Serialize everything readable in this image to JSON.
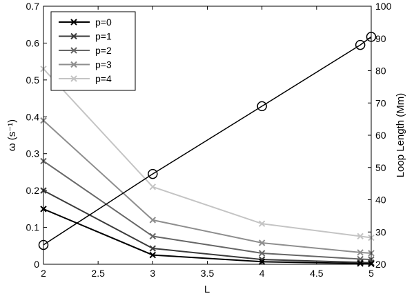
{
  "chart_data": {
    "type": "line",
    "xlabel": "L",
    "ylabel": "ω (s⁻¹)",
    "y2label": "Loop Length (Mm)",
    "xlim": [
      2,
      5
    ],
    "ylim": [
      0,
      0.7
    ],
    "y2lim": [
      20,
      100
    ],
    "xticks": [
      "2",
      "2.5",
      "3",
      "3.5",
      "4",
      "4.5",
      "5"
    ],
    "yticks": [
      "0",
      "0.1",
      "0.2",
      "0.3",
      "0.4",
      "0.5",
      "0.6",
      "0.7"
    ],
    "y2ticks": [
      "20",
      "30",
      "40",
      "50",
      "60",
      "70",
      "80",
      "90",
      "100"
    ],
    "legend_position": "top-left",
    "series": [
      {
        "name": "p=0",
        "axis": "left",
        "marker": "x",
        "color": "#000000",
        "x": [
          2,
          3,
          4,
          4.9,
          5
        ],
        "y": [
          0.15,
          0.025,
          0.007,
          0.002,
          0.001
        ]
      },
      {
        "name": "p=1",
        "axis": "left",
        "marker": "x",
        "color": "#3a3a3a",
        "x": [
          2,
          3,
          4,
          4.9,
          5
        ],
        "y": [
          0.2,
          0.043,
          0.013,
          0.005,
          0.004
        ]
      },
      {
        "name": "p=2",
        "axis": "left",
        "marker": "x",
        "color": "#666666",
        "x": [
          2,
          3,
          4,
          4.9,
          5
        ],
        "y": [
          0.28,
          0.076,
          0.03,
          0.014,
          0.013
        ]
      },
      {
        "name": "p=3",
        "axis": "left",
        "marker": "x",
        "color": "#8e8e8e",
        "x": [
          2,
          3,
          4,
          4.9,
          5
        ],
        "y": [
          0.39,
          0.12,
          0.058,
          0.032,
          0.03
        ]
      },
      {
        "name": "p=4",
        "axis": "left",
        "marker": "x",
        "color": "#c4c4c4",
        "x": [
          2,
          3,
          4,
          4.9,
          5
        ],
        "y": [
          0.53,
          0.21,
          0.11,
          0.076,
          0.072
        ]
      },
      {
        "name": "",
        "axis": "right",
        "marker": "o",
        "color": "#000000",
        "x": [
          2,
          3,
          4,
          4.9,
          5
        ],
        "y": [
          26,
          48,
          69,
          88,
          90.5
        ]
      }
    ]
  }
}
